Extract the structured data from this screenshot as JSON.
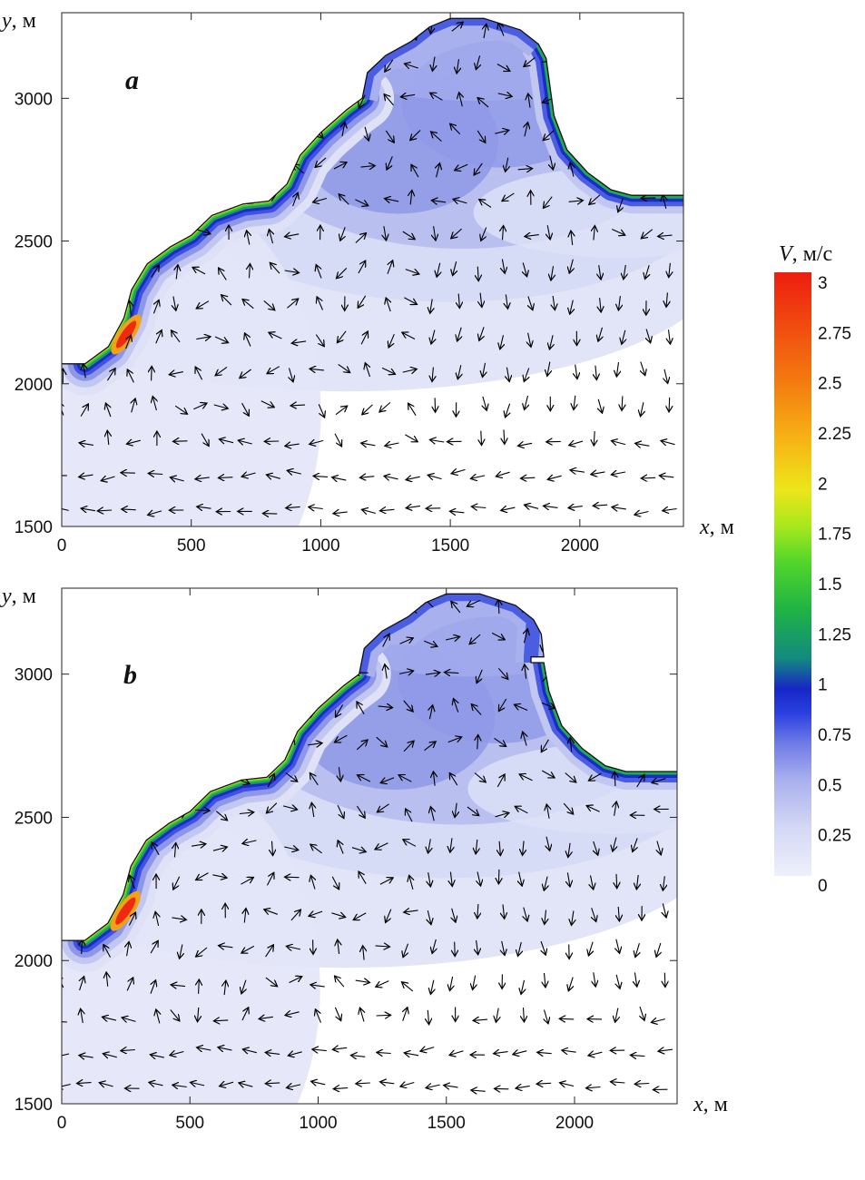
{
  "chart_data": [
    {
      "type": "contour-vector",
      "panel_label": "a",
      "xlabel_var": "x",
      "xlabel_unit": ", м",
      "ylabel_var": "y",
      "ylabel_unit": ", м",
      "xlim": [
        0,
        2400
      ],
      "ylim": [
        1500,
        3300
      ],
      "x_ticks": [
        0,
        500,
        1000,
        1500,
        2000
      ],
      "y_ticks": [
        1500,
        2000,
        2500,
        3000
      ],
      "coastline": [
        [
          0,
          2070
        ],
        [
          90,
          2070
        ],
        [
          180,
          2130
        ],
        [
          240,
          2230
        ],
        [
          270,
          2330
        ],
        [
          330,
          2420
        ],
        [
          420,
          2480
        ],
        [
          500,
          2520
        ],
        [
          580,
          2590
        ],
        [
          700,
          2630
        ],
        [
          800,
          2640
        ],
        [
          870,
          2700
        ],
        [
          920,
          2800
        ],
        [
          1000,
          2880
        ],
        [
          1100,
          2960
        ],
        [
          1160,
          3000
        ],
        [
          1180,
          3090
        ],
        [
          1250,
          3150
        ],
        [
          1350,
          3200
        ],
        [
          1420,
          3250
        ],
        [
          1500,
          3280
        ],
        [
          1630,
          3280
        ],
        [
          1770,
          3240
        ],
        [
          1840,
          3190
        ],
        [
          1870,
          3140
        ],
        [
          1900,
          2940
        ],
        [
          1950,
          2820
        ],
        [
          2030,
          2740
        ],
        [
          2120,
          2680
        ],
        [
          2200,
          2660
        ],
        [
          2400,
          2660
        ]
      ],
      "high_speed_band": [
        [
          90,
          2070
        ],
        [
          180,
          2130
        ],
        [
          240,
          2230
        ],
        [
          270,
          2330
        ],
        [
          330,
          2420
        ],
        [
          420,
          2480
        ],
        [
          500,
          2520
        ],
        [
          580,
          2590
        ],
        [
          700,
          2630
        ],
        [
          800,
          2640
        ],
        [
          870,
          2700
        ],
        [
          920,
          2800
        ],
        [
          1000,
          2880
        ],
        [
          1100,
          2960
        ],
        [
          1160,
          3000
        ]
      ],
      "speed_peak": {
        "x": 270,
        "y": 2230,
        "v": 3
      }
    },
    {
      "type": "contour-vector",
      "panel_label": "b",
      "xlabel_var": "x",
      "xlabel_unit": ", м",
      "ylabel_var": "y",
      "ylabel_unit": ", м",
      "xlim": [
        0,
        2400
      ],
      "ylim": [
        1500,
        3300
      ],
      "x_ticks": [
        0,
        500,
        1000,
        1500,
        2000
      ],
      "y_ticks": [
        1500,
        2000,
        2500,
        3000
      ],
      "coastline": [
        [
          0,
          2070
        ],
        [
          90,
          2070
        ],
        [
          180,
          2130
        ],
        [
          240,
          2230
        ],
        [
          270,
          2330
        ],
        [
          330,
          2420
        ],
        [
          420,
          2480
        ],
        [
          500,
          2520
        ],
        [
          580,
          2590
        ],
        [
          700,
          2630
        ],
        [
          800,
          2640
        ],
        [
          870,
          2700
        ],
        [
          920,
          2800
        ],
        [
          1000,
          2880
        ],
        [
          1100,
          2960
        ],
        [
          1160,
          3000
        ],
        [
          1180,
          3090
        ],
        [
          1250,
          3150
        ],
        [
          1350,
          3200
        ],
        [
          1420,
          3250
        ],
        [
          1500,
          3280
        ],
        [
          1630,
          3280
        ],
        [
          1770,
          3240
        ],
        [
          1840,
          3190
        ],
        [
          1870,
          3140
        ],
        [
          1880,
          3060
        ],
        [
          1830,
          3060
        ],
        [
          1830,
          3040
        ],
        [
          1880,
          3040
        ],
        [
          1900,
          2940
        ],
        [
          1950,
          2820
        ],
        [
          2030,
          2740
        ],
        [
          2120,
          2680
        ],
        [
          2200,
          2660
        ],
        [
          2400,
          2660
        ]
      ],
      "high_speed_band": [
        [
          90,
          2070
        ],
        [
          180,
          2130
        ],
        [
          240,
          2230
        ],
        [
          270,
          2330
        ],
        [
          330,
          2420
        ],
        [
          420,
          2480
        ],
        [
          500,
          2520
        ],
        [
          580,
          2590
        ],
        [
          700,
          2630
        ],
        [
          800,
          2640
        ],
        [
          870,
          2700
        ],
        [
          920,
          2800
        ],
        [
          1000,
          2880
        ],
        [
          1100,
          2960
        ],
        [
          1160,
          3000
        ]
      ],
      "speed_peak": {
        "x": 270,
        "y": 2230,
        "v": 3
      }
    }
  ],
  "colorbar": {
    "label_var": "V",
    "label_unit": ", м/с",
    "min": 0,
    "max": 3,
    "tick_labels": [
      "3",
      "2.75",
      "2.5",
      "2.25",
      "2",
      "1.75",
      "1.5",
      "1.25",
      "1",
      "0.75",
      "0.5",
      "0.25",
      "0"
    ],
    "colors": [
      "#eef0fb",
      "#c9cdf2",
      "#8f97e8",
      "#3b4ee0",
      "#1a2cc9",
      "#138a7f",
      "#2fc23a",
      "#8fe021",
      "#ece61a",
      "#f6a414",
      "#f35c0e",
      "#ee1d10"
    ]
  }
}
